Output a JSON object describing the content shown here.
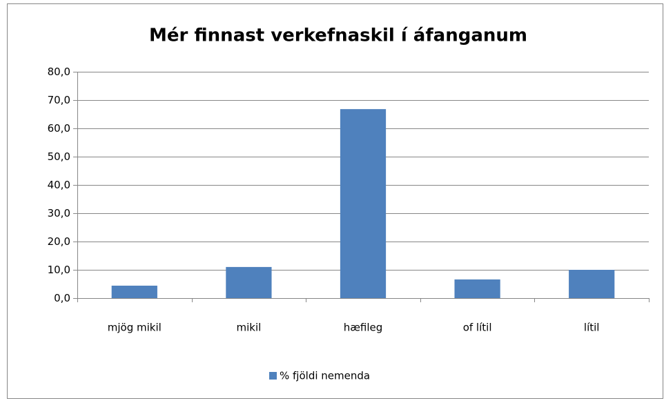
{
  "chart_data": {
    "type": "bar",
    "title": "Mér finnast verkefnaskil í áfanganum",
    "categories": [
      "mjög mikil",
      "mikil",
      "hæfileg",
      "of lítil",
      "lítil"
    ],
    "series": [
      {
        "name": "% fjöldi nemenda",
        "color": "#4f81bd",
        "values": [
          4.4,
          11.0,
          66.8,
          6.6,
          10.0
        ]
      }
    ],
    "ylim": [
      0,
      80
    ],
    "yticks": [
      {
        "value": 0,
        "label": "0,0"
      },
      {
        "value": 10,
        "label": "10,0"
      },
      {
        "value": 20,
        "label": "20,0"
      },
      {
        "value": 30,
        "label": "30,0"
      },
      {
        "value": 40,
        "label": "40,0"
      },
      {
        "value": 50,
        "label": "50,0"
      },
      {
        "value": 60,
        "label": "60,0"
      },
      {
        "value": 70,
        "label": "70,0"
      },
      {
        "value": 80,
        "label": "80,0"
      }
    ],
    "grid": true,
    "legend": "bottom"
  }
}
